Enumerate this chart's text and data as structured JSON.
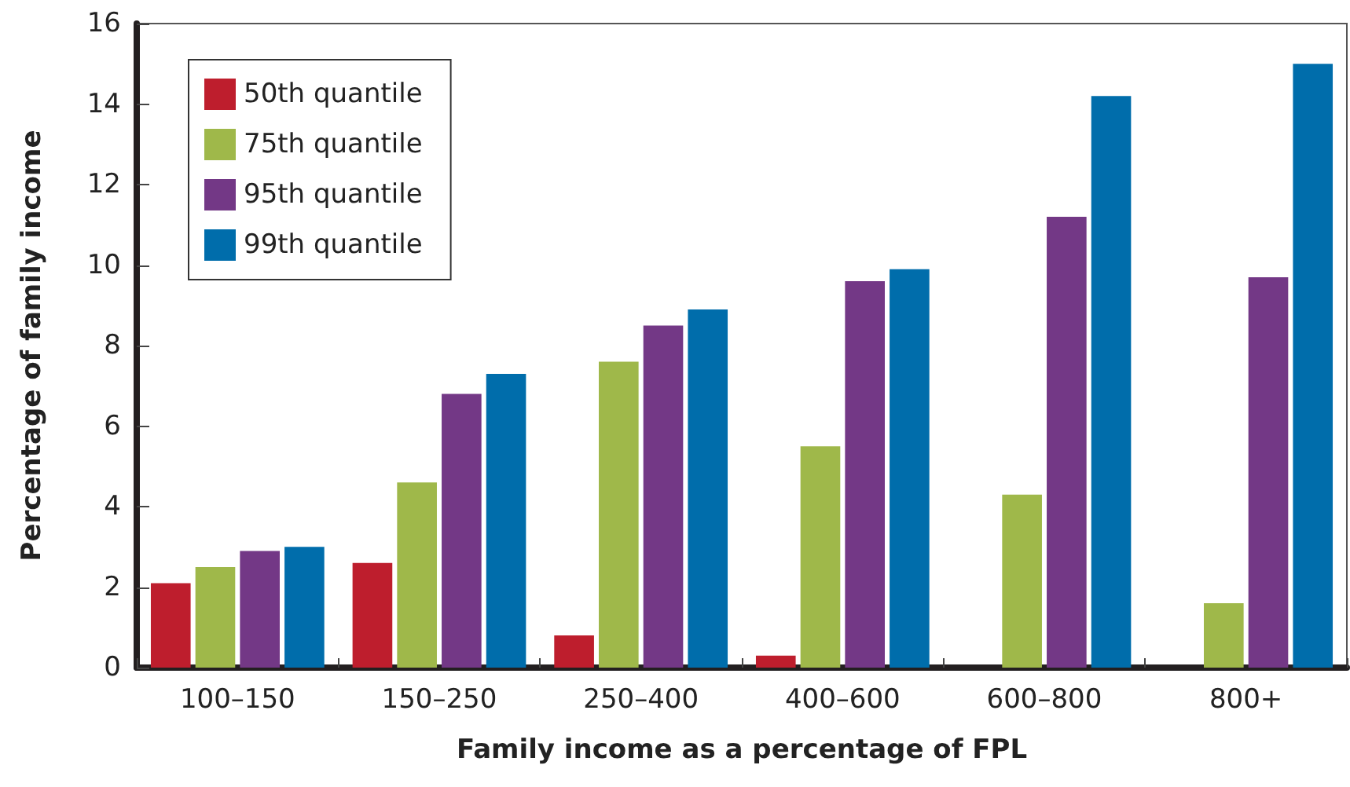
{
  "chart_data": {
    "type": "bar",
    "xlabel": "Family income as a percentage of FPL",
    "ylabel": "Percentage of family income",
    "categories": [
      "100–150",
      "150–250",
      "250–400",
      "400–600",
      "600–800",
      "800+"
    ],
    "series": [
      {
        "name": "50th quantile",
        "color": "#be1e2d",
        "values": [
          2.1,
          2.6,
          0.8,
          0.3,
          null,
          null
        ]
      },
      {
        "name": "75th quantile",
        "color": "#9fb84a",
        "values": [
          2.5,
          4.6,
          7.6,
          5.5,
          4.3,
          1.6
        ]
      },
      {
        "name": "95th quantile",
        "color": "#733886",
        "values": [
          2.9,
          6.8,
          8.5,
          9.6,
          11.2,
          9.7
        ]
      },
      {
        "name": "99th quantile",
        "color": "#006dab",
        "values": [
          3.0,
          7.3,
          8.9,
          9.9,
          14.2,
          15.0
        ]
      }
    ],
    "ylim": [
      0,
      16
    ],
    "yticks": [
      0,
      2,
      4,
      6,
      8,
      10,
      12,
      14,
      16
    ],
    "grid": false,
    "legend": "top left"
  }
}
